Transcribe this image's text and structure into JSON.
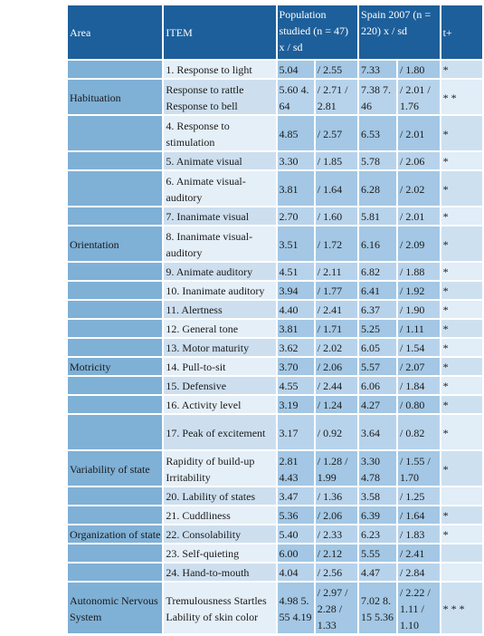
{
  "header": {
    "area": "Area",
    "item": "ITEM",
    "population": "Population studied (n = 47) x / sd",
    "spain": "Spain 2007 (n = 220) x / sd",
    "t": "t+"
  },
  "rows": [
    {
      "area": "",
      "item": "1. Response to light",
      "p1": "5.04",
      "p2": "/ 2.55",
      "s1": "7.33",
      "s2": "/ 1.80",
      "t": "*"
    },
    {
      "area": "Habituation",
      "item": "Response to rattle Response to bell",
      "p1": "5.60  4. 64",
      "p2": "/ 2.71  /  2.81",
      "s1": "7.38  7. 46",
      "s2": "/ 2.01  /  1.76",
      "t": "* *"
    },
    {
      "area": "",
      "item": "4. Response to stimulation",
      "p1": "4.85",
      "p2": "/ 2.57",
      "s1": "6.53",
      "s2": "/ 2.01",
      "t": "*"
    },
    {
      "area": "",
      "item": "5. Animate visual",
      "p1": "3.30",
      "p2": "/ 1.85",
      "s1": "5.78",
      "s2": "/ 2.06",
      "t": "*"
    },
    {
      "area": "",
      "item": "6. Animate visual-auditory",
      "p1": "3.81",
      "p2": "/ 1.64",
      "s1": "6.28",
      "s2": "/ 2.02",
      "t": "*"
    },
    {
      "area": "",
      "item": "7. Inanimate visual",
      "p1": "2.70",
      "p2": "/ 1.60",
      "s1": "5.81",
      "s2": "/ 2.01",
      "t": "*"
    },
    {
      "area": "Orientation",
      "item": "8. Inanimate visual-auditory",
      "p1": "3.51",
      "p2": "/ 1.72",
      "s1": "6.16",
      "s2": "/ 2.09",
      "t": "*"
    },
    {
      "area": "",
      "item": "9. Animate auditory",
      "p1": "4.51",
      "p2": "/ 2.11",
      "s1": "6.82",
      "s2": "/ 1.88",
      "t": "*"
    },
    {
      "area": "",
      "item": "10. Inanimate auditory",
      "p1": "3.94",
      "p2": "/ 1.77",
      "s1": "6.41",
      "s2": "/ 1.92",
      "t": "*"
    },
    {
      "area": "",
      "item": "11. Alertness",
      "p1": "4.40",
      "p2": "/ 2.41",
      "s1": "6.37",
      "s2": "/ 1.90",
      "t": "*"
    },
    {
      "area": "",
      "item": "12. General tone",
      "p1": "3.81",
      "p2": "/ 1.71",
      "s1": "5.25",
      "s2": "/ 1.11",
      "t": "*"
    },
    {
      "area": "",
      "item": "13. Motor maturity",
      "p1": "3.62",
      "p2": "/ 2.02",
      "s1": "6.05",
      "s2": "/ 1.54",
      "t": "*"
    },
    {
      "area": "Motricity",
      "item": "14. Pull-to-sit",
      "p1": "3.70",
      "p2": "/ 2.06",
      "s1": "5.57",
      "s2": "/ 2.07",
      "t": "*"
    },
    {
      "area": "",
      "item": "15. Defensive",
      "p1": "4.55",
      "p2": "/ 2.44",
      "s1": "6.06",
      "s2": "/ 1.84",
      "t": "*"
    },
    {
      "area": "",
      "item": "16. Activity level",
      "p1": "3.19",
      "p2": "/ 1.24",
      "s1": "4.27",
      "s2": "/ 0.80",
      "t": "*"
    },
    {
      "area": "",
      "item": "17. Peak of excitement",
      "p1": "3.17",
      "p2": "/ 0.92",
      "s1": "3.64",
      "s2": "/ 0.82",
      "t": "*"
    },
    {
      "area": "Variability of state",
      "item": "Rapidity of build-up Irritability",
      "p1": "2.81  4.43",
      "p2": "/ 1.28 /  1.99",
      "s1": "3.30  4.78",
      "s2": "/ 1.55 /  1.70",
      "t": "*"
    },
    {
      "area": "",
      "item": "20. Lability of states",
      "p1": "3.47",
      "p2": "/ 1.36",
      "s1": "3.58",
      "s2": "/ 1.25",
      "t": ""
    },
    {
      "area": "",
      "item": "21. Cuddliness",
      "p1": "5.36",
      "p2": "/ 2.06",
      "s1": "6.39",
      "s2": "/ 1.64",
      "t": "*"
    },
    {
      "area": "Organization of state",
      "item": "22. Consolability",
      "p1": "5.40",
      "p2": "/ 2.33",
      "s1": "6.23",
      "s2": "/ 1.83",
      "t": "*"
    },
    {
      "area": "",
      "item": "23. Self-quieting",
      "p1": "6.00",
      "p2": "/ 2.12",
      "s1": "5.55",
      "s2": "/ 2.41",
      "t": ""
    },
    {
      "area": "",
      "item": "24. Hand-to-mouth",
      "p1": "4.04",
      "p2": "/ 2.56",
      "s1": "4.47",
      "s2": "/ 2.84",
      "t": ""
    },
    {
      "area": "Autonomic Nervous System",
      "item": "Tremulousness Startles Lability of skin color",
      "p1": "4.98  5. 55  4.19",
      "p2": "/ 2.97  /  2.28  /  1.33",
      "s1": "7.02  8. 15  5.36",
      "s2": "/ 2.22  /  1.11  /  1.10",
      "t": "* * *"
    }
  ]
}
